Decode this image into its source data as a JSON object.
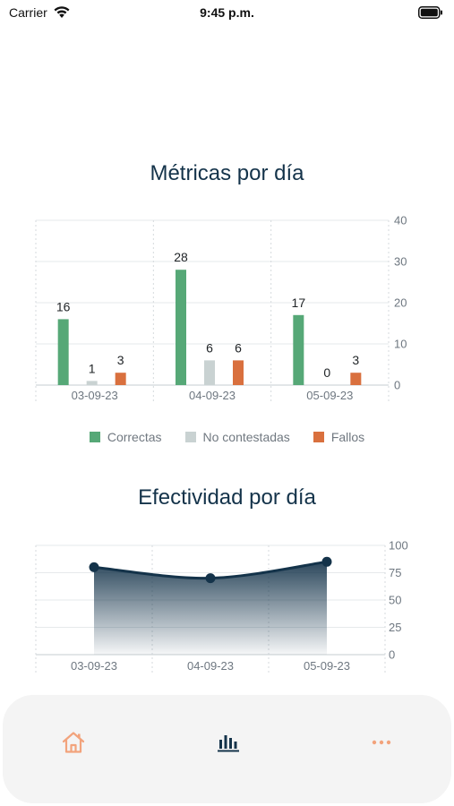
{
  "status_bar": {
    "carrier": "Carrier",
    "time": "9:45 p.m."
  },
  "metrics_section": {
    "title": "Métricas por día"
  },
  "effectiveness_section": {
    "title": "Efectividad por día"
  },
  "chart_data": [
    {
      "type": "bar",
      "title": "Métricas por día",
      "categories": [
        "03-09-23",
        "04-09-23",
        "05-09-23"
      ],
      "series": [
        {
          "name": "Correctas",
          "color": "#56a877",
          "values": [
            16,
            28,
            17
          ]
        },
        {
          "name": "No contestadas",
          "color": "#c9d2d2",
          "values": [
            1,
            6,
            0
          ]
        },
        {
          "name": "Fallos",
          "color": "#d9703e",
          "values": [
            3,
            6,
            3
          ]
        }
      ],
      "ylim": [
        0,
        40
      ],
      "yticks": [
        0,
        10,
        20,
        30,
        40
      ],
      "y_axis_side": "right",
      "grid": true,
      "legend_position": "bottom",
      "data_labels": true
    },
    {
      "type": "area",
      "title": "Efectividad por día",
      "categories": [
        "03-09-23",
        "04-09-23",
        "05-09-23"
      ],
      "values": [
        80,
        70,
        85
      ],
      "ylim": [
        0,
        100
      ],
      "yticks": [
        0,
        25,
        50,
        75,
        100
      ],
      "y_axis_side": "right",
      "grid": true,
      "line_color": "#14334a"
    }
  ],
  "tab_bar": {
    "tabs": [
      {
        "name": "home",
        "icon": "home-icon",
        "color": "#f2a37c",
        "active": false
      },
      {
        "name": "stats",
        "icon": "bar-chart-icon",
        "color": "#14334a",
        "active": true
      },
      {
        "name": "more",
        "icon": "more-dots-icon",
        "color": "#f2a37c",
        "active": false
      }
    ]
  }
}
